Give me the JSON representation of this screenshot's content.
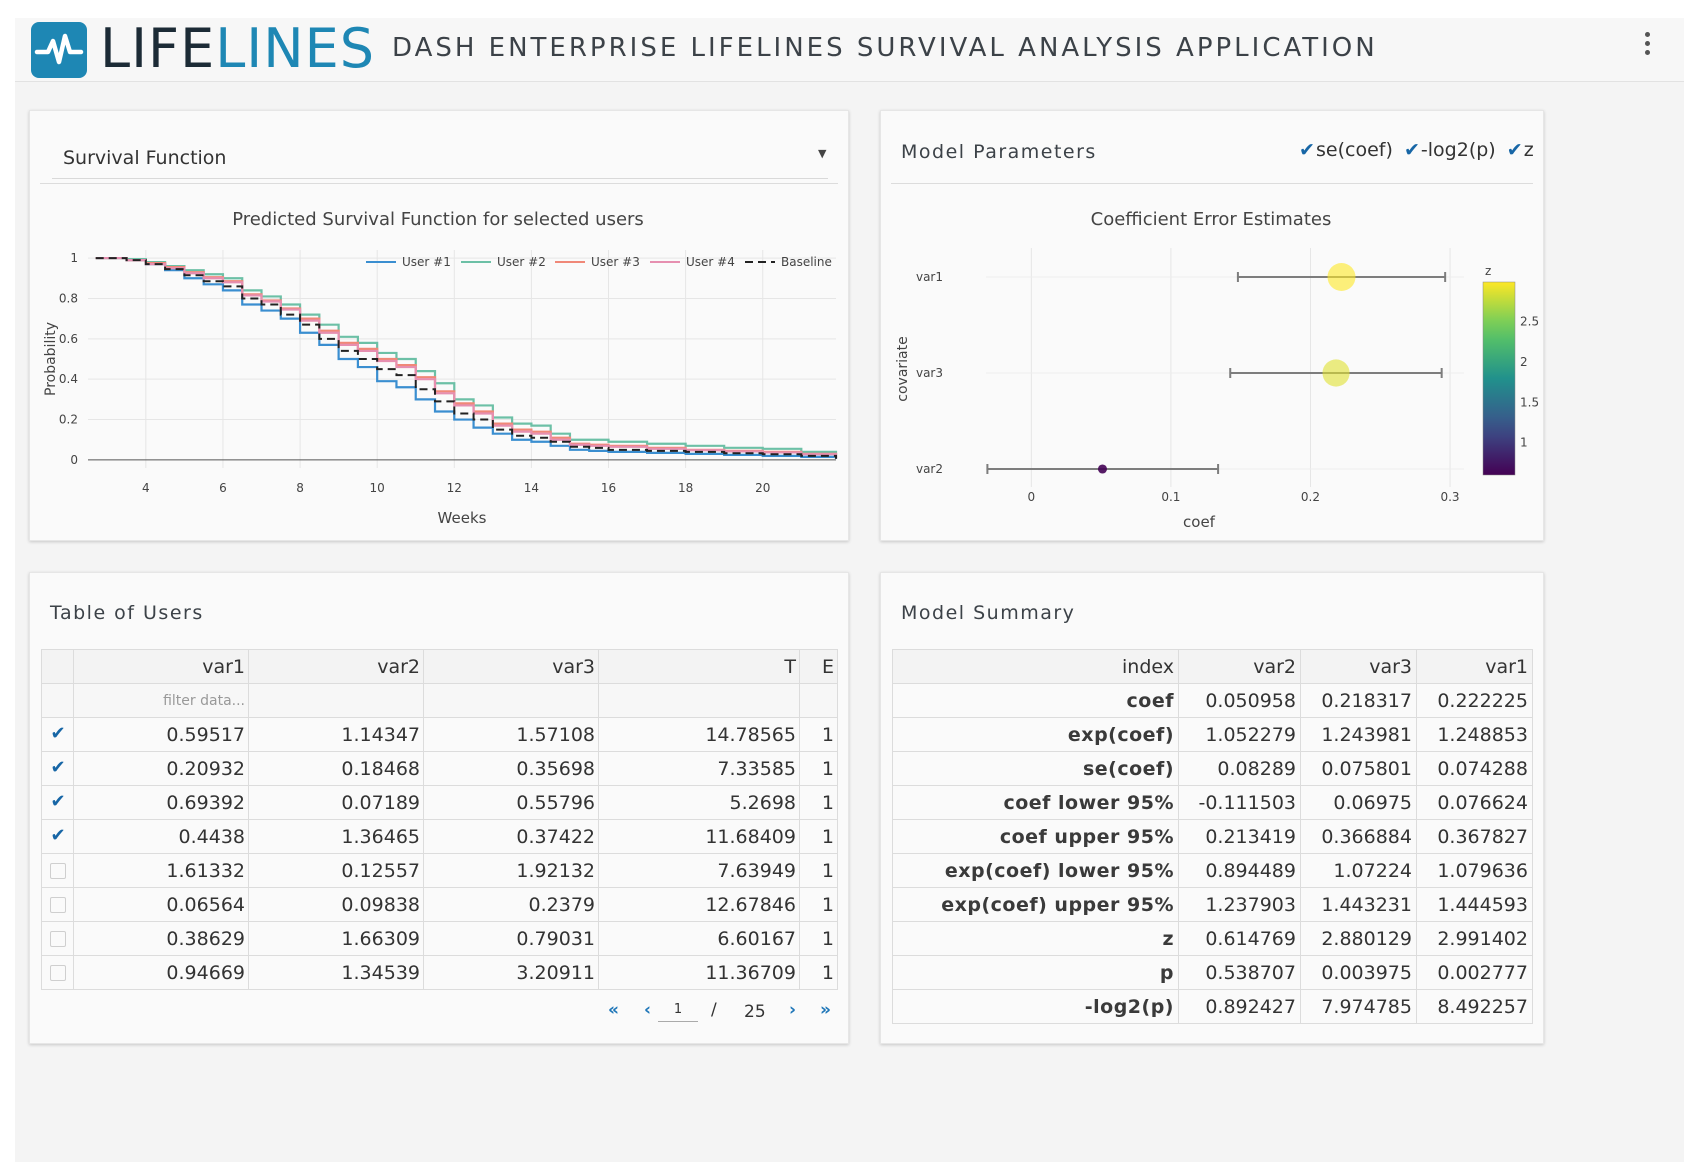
{
  "header": {
    "logo_part1": "LIFE",
    "logo_part2": "LINES",
    "title": "DASH ENTERPRISE LIFELINES SURVIVAL ANALYSIS APPLICATION",
    "brand_color": "#1e87b4"
  },
  "survival_panel": {
    "dropdown_value": "Survival Function",
    "chart_data": {
      "type": "line",
      "title": "Predicted Survival Function for selected users",
      "xlabel": "Weeks",
      "ylabel": "Probability",
      "xlim": [
        2.5,
        21.9
      ],
      "ylim": [
        -0.04,
        1.04
      ],
      "xticks": [
        4,
        6,
        8,
        10,
        12,
        14,
        16,
        18,
        20
      ],
      "yticks": [
        0,
        0.2,
        0.4,
        0.6,
        0.8,
        1
      ],
      "ytick_labels": [
        "0",
        "0.2",
        "0.4",
        "0.6",
        "0.8",
        "1"
      ],
      "legend_position": "top-right",
      "x": [
        2.7,
        3.5,
        4.0,
        4.5,
        5.0,
        5.5,
        6.0,
        6.5,
        7.0,
        7.5,
        8.0,
        8.5,
        9.0,
        9.5,
        10.0,
        10.5,
        11.0,
        11.5,
        12.0,
        12.5,
        13.0,
        13.5,
        14.0,
        14.5,
        15.0,
        15.5,
        16.0,
        17.0,
        18.0,
        19.0,
        20.0,
        21.0,
        21.9
      ],
      "series": [
        {
          "name": "User #1",
          "color": "#3a8ed0",
          "dash": false,
          "values": [
            1.0,
            0.99,
            0.97,
            0.94,
            0.9,
            0.87,
            0.84,
            0.77,
            0.74,
            0.7,
            0.63,
            0.57,
            0.5,
            0.46,
            0.39,
            0.36,
            0.3,
            0.24,
            0.2,
            0.16,
            0.13,
            0.1,
            0.09,
            0.07,
            0.05,
            0.045,
            0.04,
            0.035,
            0.03,
            0.025,
            0.02,
            0.015,
            0.005
          ]
        },
        {
          "name": "User #2",
          "color": "#6cc0a6",
          "dash": false,
          "values": [
            1.0,
            0.995,
            0.98,
            0.96,
            0.94,
            0.92,
            0.9,
            0.84,
            0.81,
            0.77,
            0.72,
            0.67,
            0.61,
            0.58,
            0.53,
            0.5,
            0.44,
            0.38,
            0.3,
            0.27,
            0.21,
            0.18,
            0.17,
            0.13,
            0.1,
            0.1,
            0.09,
            0.08,
            0.07,
            0.06,
            0.055,
            0.04,
            0.01
          ]
        },
        {
          "name": "User #3",
          "color": "#f08878",
          "dash": false,
          "values": [
            1.0,
            0.99,
            0.975,
            0.955,
            0.93,
            0.905,
            0.885,
            0.82,
            0.79,
            0.75,
            0.7,
            0.64,
            0.58,
            0.55,
            0.5,
            0.47,
            0.41,
            0.34,
            0.28,
            0.24,
            0.18,
            0.15,
            0.14,
            0.11,
            0.08,
            0.075,
            0.07,
            0.06,
            0.05,
            0.045,
            0.04,
            0.03,
            0.008
          ]
        },
        {
          "name": "User #4",
          "color": "#e68fb0",
          "dash": false,
          "values": [
            1.0,
            0.99,
            0.97,
            0.95,
            0.925,
            0.9,
            0.88,
            0.815,
            0.785,
            0.745,
            0.69,
            0.63,
            0.57,
            0.54,
            0.49,
            0.46,
            0.4,
            0.33,
            0.27,
            0.23,
            0.17,
            0.14,
            0.13,
            0.1,
            0.075,
            0.07,
            0.065,
            0.055,
            0.048,
            0.042,
            0.037,
            0.028,
            0.007
          ]
        },
        {
          "name": "Baseline",
          "color": "#222222",
          "dash": true,
          "values": [
            1.0,
            0.99,
            0.97,
            0.945,
            0.915,
            0.885,
            0.86,
            0.8,
            0.77,
            0.72,
            0.67,
            0.6,
            0.54,
            0.5,
            0.45,
            0.42,
            0.35,
            0.29,
            0.23,
            0.2,
            0.15,
            0.12,
            0.11,
            0.09,
            0.065,
            0.06,
            0.05,
            0.045,
            0.04,
            0.033,
            0.028,
            0.02,
            0.006
          ]
        }
      ]
    }
  },
  "model_params_panel": {
    "title": "Model Parameters",
    "checkboxes": [
      {
        "label": "se(coef)",
        "checked": true
      },
      {
        "label": "-log2(p)",
        "checked": true
      },
      {
        "label": "z",
        "checked": true
      }
    ],
    "chart_data": {
      "type": "scatter",
      "title": "Coefficient Error Estimates",
      "xlabel": "coef",
      "ylabel": "covariate",
      "xlim": [
        -0.0325,
        0.31
      ],
      "xticks": [
        0,
        0.1,
        0.2,
        0.3
      ],
      "categories": [
        "var1",
        "var3",
        "var2"
      ],
      "points": [
        {
          "covariate": "var1",
          "coef": 0.222225,
          "lower": 0.148,
          "upper": 0.2965,
          "z": 2.991402,
          "neglog2p": 8.492257
        },
        {
          "covariate": "var3",
          "coef": 0.218317,
          "lower": 0.1425,
          "upper": 0.294,
          "z": 2.880129,
          "neglog2p": 7.974785
        },
        {
          "covariate": "var2",
          "coef": 0.050958,
          "lower": -0.0315,
          "upper": 0.1338,
          "z": 0.614769,
          "neglog2p": 0.892427
        }
      ],
      "colorbar": {
        "title": "z",
        "ticks": [
          1,
          1.5,
          2,
          2.5
        ],
        "range": [
          0.6,
          2.99
        ],
        "colorscale": "viridis"
      }
    }
  },
  "users_panel": {
    "title": "Table of Users",
    "columns": [
      "",
      "var1",
      "var2",
      "var3",
      "T",
      "E"
    ],
    "filter_placeholder": "filter data...",
    "rows": [
      {
        "checked": true,
        "var1": "0.59517",
        "var2": "1.14347",
        "var3": "1.57108",
        "T": "14.78565",
        "E": "1"
      },
      {
        "checked": true,
        "var1": "0.20932",
        "var2": "0.18468",
        "var3": "0.35698",
        "T": "7.33585",
        "E": "1"
      },
      {
        "checked": true,
        "var1": "0.69392",
        "var2": "0.07189",
        "var3": "0.55796",
        "T": "5.2698",
        "E": "1"
      },
      {
        "checked": true,
        "var1": "0.4438",
        "var2": "1.36465",
        "var3": "0.37422",
        "T": "11.68409",
        "E": "1"
      },
      {
        "checked": false,
        "var1": "1.61332",
        "var2": "0.12557",
        "var3": "1.92132",
        "T": "7.63949",
        "E": "1"
      },
      {
        "checked": false,
        "var1": "0.06564",
        "var2": "0.09838",
        "var3": "0.2379",
        "T": "12.67846",
        "E": "1"
      },
      {
        "checked": false,
        "var1": "0.38629",
        "var2": "1.66309",
        "var3": "0.79031",
        "T": "6.60167",
        "E": "1"
      },
      {
        "checked": false,
        "var1": "0.94669",
        "var2": "1.34539",
        "var3": "3.20911",
        "T": "11.36709",
        "E": "1"
      }
    ],
    "pager": {
      "first": "«",
      "prev": "‹",
      "current": "1",
      "separator": "/",
      "total": "25",
      "next": "›",
      "last": "»"
    }
  },
  "summary_panel": {
    "title": "Model Summary",
    "columns": [
      "index",
      "var2",
      "var3",
      "var1"
    ],
    "rows": [
      [
        "coef",
        "0.050958",
        "0.218317",
        "0.222225"
      ],
      [
        "exp(coef)",
        "1.052279",
        "1.243981",
        "1.248853"
      ],
      [
        "se(coef)",
        "0.08289",
        "0.075801",
        "0.074288"
      ],
      [
        "coef lower 95%",
        "-0.111503",
        "0.06975",
        "0.076624"
      ],
      [
        "coef upper 95%",
        "0.213419",
        "0.366884",
        "0.367827"
      ],
      [
        "exp(coef) lower 95%",
        "0.894489",
        "1.07224",
        "1.079636"
      ],
      [
        "exp(coef) upper 95%",
        "1.237903",
        "1.443231",
        "1.444593"
      ],
      [
        "z",
        "0.614769",
        "2.880129",
        "2.991402"
      ],
      [
        "p",
        "0.538707",
        "0.003975",
        "0.002777"
      ],
      [
        "-log2(p)",
        "0.892427",
        "7.974785",
        "8.492257"
      ]
    ]
  }
}
